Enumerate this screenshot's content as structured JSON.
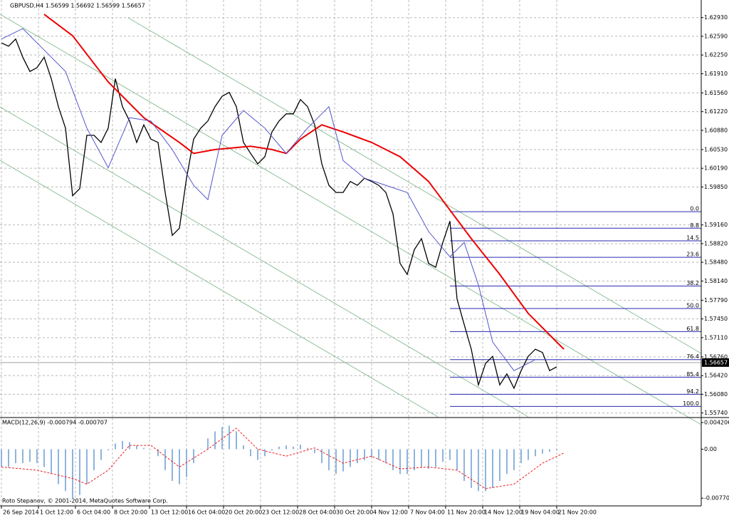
{
  "chart_data": [
    {
      "type": "line",
      "title": "GBPUSD,H4 1.56599 1.56692 1.56599 1.56657",
      "xlim": [
        -0.2,
        98.3
      ],
      "ylim": [
        1.5567,
        1.6325
      ],
      "grid": true,
      "xticks": [
        {
          "value": 0,
          "label": "26 Sep 2014"
        },
        {
          "value": 5.2,
          "label": "1 Oct 12:00"
        },
        {
          "value": 10.4,
          "label": "6 Oct 04:00"
        },
        {
          "value": 15.6,
          "label": "8 Oct 20:00"
        },
        {
          "value": 20.8,
          "label": "13 Oct 12:00"
        },
        {
          "value": 26,
          "label": "16 Oct 04:00"
        },
        {
          "value": 31.2,
          "label": "20 Oct 20:00"
        },
        {
          "value": 36.4,
          "label": "23 Oct 12:00"
        },
        {
          "value": 41.6,
          "label": "28 Oct 04:00"
        },
        {
          "value": 46.8,
          "label": "30 Oct 20:00"
        },
        {
          "value": 52,
          "label": "4 Nov 12:00"
        },
        {
          "value": 57.2,
          "label": "7 Nov 04:00"
        },
        {
          "value": 62.4,
          "label": "11 Nov 20:00"
        },
        {
          "value": 67.6,
          "label": "14 Nov 12:00"
        },
        {
          "value": 72.8,
          "label": "19 Nov 04:00"
        },
        {
          "value": 78,
          "label": "21 Nov 20:00"
        }
      ],
      "yticks": [
        {
          "value": 1.6293,
          "label": "1.62930"
        },
        {
          "value": 1.6259,
          "label": "1.62590"
        },
        {
          "value": 1.6225,
          "label": "1.62250"
        },
        {
          "value": 1.6191,
          "label": "1.61910"
        },
        {
          "value": 1.6156,
          "label": "1.61560"
        },
        {
          "value": 1.6122,
          "label": "1.61220"
        },
        {
          "value": 1.6088,
          "label": "1.60880"
        },
        {
          "value": 1.6053,
          "label": "1.60530"
        },
        {
          "value": 1.6019,
          "label": "1.60190"
        },
        {
          "value": 1.5985,
          "label": "1.59850"
        },
        {
          "value": 1.5916,
          "label": "1.59160"
        },
        {
          "value": 1.5882,
          "label": "1.58820"
        },
        {
          "value": 1.5848,
          "label": "1.58480"
        },
        {
          "value": 1.5814,
          "label": "1.58140"
        },
        {
          "value": 1.5779,
          "label": "1.57790"
        },
        {
          "value": 1.5745,
          "label": "1.57450"
        },
        {
          "value": 1.5711,
          "label": "1.57110"
        },
        {
          "value": 1.5676,
          "label": "1.56760"
        },
        {
          "value": 1.5642,
          "label": "1.56420"
        },
        {
          "value": 1.5608,
          "label": "1.56080"
        },
        {
          "value": 1.5574,
          "label": "1.55740"
        }
      ],
      "last_price": 1.56657,
      "series": [
        {
          "color": "#000000",
          "values": [
            1.6247,
            1.6241,
            1.6254,
            1.6221,
            1.6195,
            1.6202,
            1.6221,
            1.6182,
            1.6131,
            1.6092,
            1.5969,
            1.5982,
            1.6079,
            1.6079,
            1.6066,
            1.6092,
            1.6182,
            1.6131,
            1.6105,
            1.6066,
            1.6098,
            1.6072,
            1.6066,
            1.5975,
            1.5897,
            1.591,
            1.6001,
            1.6072,
            1.6092,
            1.6105,
            1.6131,
            1.615,
            1.6157,
            1.6131,
            1.6066,
            1.6046,
            1.6027,
            1.604,
            1.6085,
            1.6105,
            1.6118,
            1.6118,
            1.6144,
            1.6131,
            1.6098,
            1.6027,
            1.5988,
            1.5975,
            1.5975,
            1.5995,
            1.5988,
            1.6001,
            1.5995,
            1.5988,
            1.5975,
            1.5936,
            1.5846,
            1.5826,
            1.5871,
            1.5891,
            1.5846,
            1.5839,
            1.5884,
            1.5923,
            1.5781,
            1.5735,
            1.569,
            1.5625,
            1.5664,
            1.5677,
            1.5625,
            1.5645,
            1.5619,
            1.5651,
            1.5677,
            1.569,
            1.5684,
            1.5651,
            1.5658
          ]
        },
        {
          "color": "#ee0000",
          "x": [
            6,
            10,
            15,
            20,
            25,
            27,
            30,
            35,
            38,
            40,
            42,
            45,
            48,
            52,
            56,
            60,
            63,
            66,
            70,
            74,
            77,
            79
          ],
          "values": [
            1.6299,
            1.626,
            1.6176,
            1.6111,
            1.6066,
            1.6046,
            1.6053,
            1.6059,
            1.6053,
            1.6046,
            1.6072,
            1.6098,
            1.6085,
            1.6066,
            1.604,
            1.5995,
            1.5943,
            1.5891,
            1.5826,
            1.5755,
            1.5716,
            1.569
          ]
        },
        {
          "color": "#5555cc",
          "x": [
            0,
            3,
            6,
            9,
            12,
            15,
            18,
            21,
            24,
            27,
            29,
            31,
            34,
            37,
            40,
            43,
            46,
            48,
            51,
            54,
            57,
            60,
            63,
            65,
            67,
            69,
            72,
            75,
            77,
            79
          ],
          "values": [
            1.6254,
            1.6273,
            1.6234,
            1.6195,
            1.6092,
            1.602,
            1.6111,
            1.6105,
            1.6053,
            1.5988,
            1.5962,
            1.6079,
            1.6124,
            1.6092,
            1.6046,
            1.6092,
            1.6131,
            1.6033,
            1.6001,
            1.5988,
            1.5975,
            1.5904,
            1.5858,
            1.5884,
            1.5807,
            1.5703,
            1.5651,
            1.5671,
            1.5671,
            1.5671
          ]
        }
      ],
      "fib_color": "#2a2ab0",
      "fib_levels": [
        {
          "label": "0.0",
          "value": 1.594
        },
        {
          "label": "8.8",
          "value": 1.591
        },
        {
          "label": "14.5",
          "value": 1.5887
        },
        {
          "label": "23.6",
          "value": 1.5857
        },
        {
          "label": "38.2",
          "value": 1.5805
        },
        {
          "label": "50.0",
          "value": 1.5764
        },
        {
          "label": "61.8",
          "value": 1.5722
        },
        {
          "label": "76.4",
          "value": 1.5671
        },
        {
          "label": "85.4",
          "value": 1.5639
        },
        {
          "label": "94.2",
          "value": 1.5608
        },
        {
          "label": "100.0",
          "value": 1.5586
        }
      ]
    },
    {
      "type": "bar",
      "title": "MACD(12,26,9) -0.000794 -0.000707",
      "xlim": [
        -0.2,
        98.3
      ],
      "ylim": [
        -0.00881,
        0.00487
      ],
      "yticks": [
        0.004206,
        {
          "value": 0,
          "label": "0.00"
        },
        -0.007705
      ],
      "color": "#8fb4dc",
      "values": [
        -0.0028,
        -0.0028,
        -0.0022,
        -0.0022,
        -0.002,
        -0.0022,
        -0.0028,
        -0.0039,
        -0.0055,
        -0.0066,
        -0.0077,
        -0.0072,
        -0.0055,
        -0.0033,
        -0.0017,
        -0.0002,
        0.0009,
        0.0013,
        0.0011,
        0.0006,
        0.0002,
        0,
        -0.0011,
        -0.0033,
        -0.005,
        -0.0055,
        -0.0044,
        -0.0022,
        0,
        0.0017,
        0.0028,
        0.0035,
        0.0037,
        0.0028,
        0.0006,
        -0.0011,
        -0.0017,
        -0.0011,
        -0.0002,
        0.0004,
        0.0006,
        0.0004,
        0.0007,
        0.0002,
        -0.0006,
        -0.0022,
        -0.0033,
        -0.0039,
        -0.0035,
        -0.0028,
        -0.0022,
        -0.0017,
        -0.0013,
        -0.0017,
        -0.0022,
        -0.0033,
        -0.0039,
        -0.0039,
        -0.0033,
        -0.0028,
        -0.0031,
        -0.0028,
        -0.002,
        -0.0017,
        -0.0033,
        -0.005,
        -0.0061,
        -0.0066,
        -0.0066,
        -0.0061,
        -0.005,
        -0.0039,
        -0.0033,
        -0.0022,
        -0.0017,
        -0.0011,
        -0.0007,
        -0.0004,
        -0.0002
      ],
      "series": [
        {
          "color": "#ee2222",
          "x": [
            0,
            5,
            10,
            12,
            15,
            18,
            21,
            25,
            29,
            33,
            36,
            40,
            44,
            48,
            52,
            56,
            60,
            64,
            68,
            72,
            76,
            79
          ],
          "values": [
            -0.0028,
            -0.0033,
            -0.0046,
            -0.0055,
            -0.0033,
            0.0006,
            0.0006,
            -0.0028,
            0,
            0.0033,
            0,
            -0.0011,
            0.0002,
            -0.0022,
            -0.0011,
            -0.0031,
            -0.0028,
            -0.0033,
            -0.0062,
            -0.0055,
            -0.0022,
            -0.0006
          ]
        }
      ]
    }
  ],
  "footer": "Roto Stepanov, © 2001-2014, MetaQuotes Software Corp."
}
